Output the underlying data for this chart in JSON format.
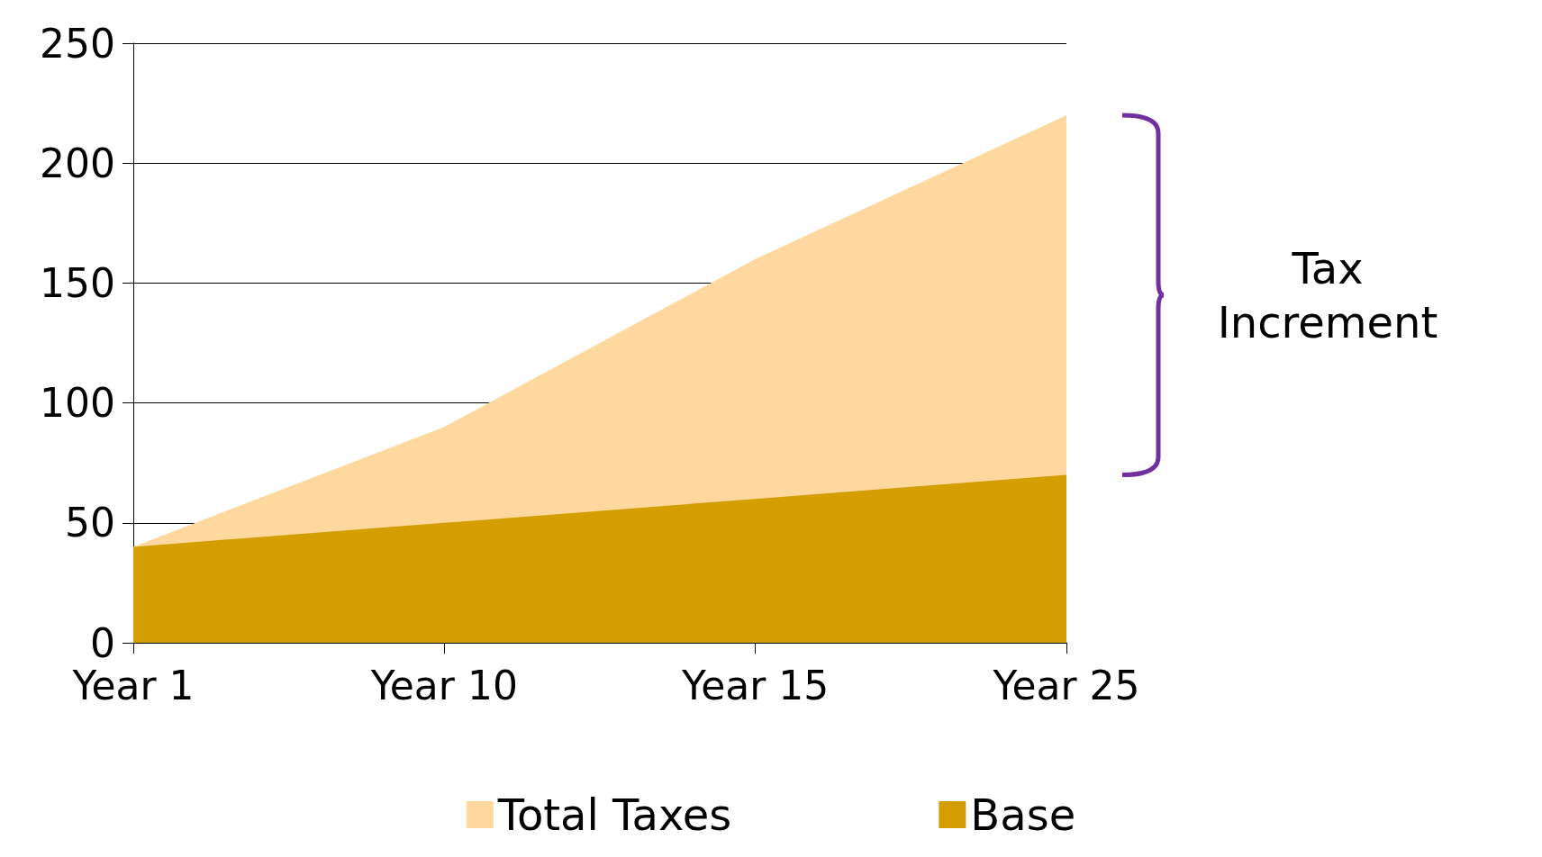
{
  "chart_data": {
    "type": "area",
    "categories": [
      "Year 1",
      "Year 10",
      "Year 15",
      "Year 25"
    ],
    "series": [
      {
        "name": "Total Taxes",
        "color": "#fed89e",
        "values": [
          40,
          90,
          160,
          220
        ]
      },
      {
        "name": "Base",
        "color": "#d49e00",
        "values": [
          40,
          50,
          60,
          70
        ]
      }
    ],
    "ylim": [
      0,
      250
    ],
    "yticks": [
      0,
      50,
      100,
      150,
      200,
      250
    ],
    "grid": "y",
    "legend": "bottom",
    "annotations": [
      "Tax Increment"
    ]
  }
}
